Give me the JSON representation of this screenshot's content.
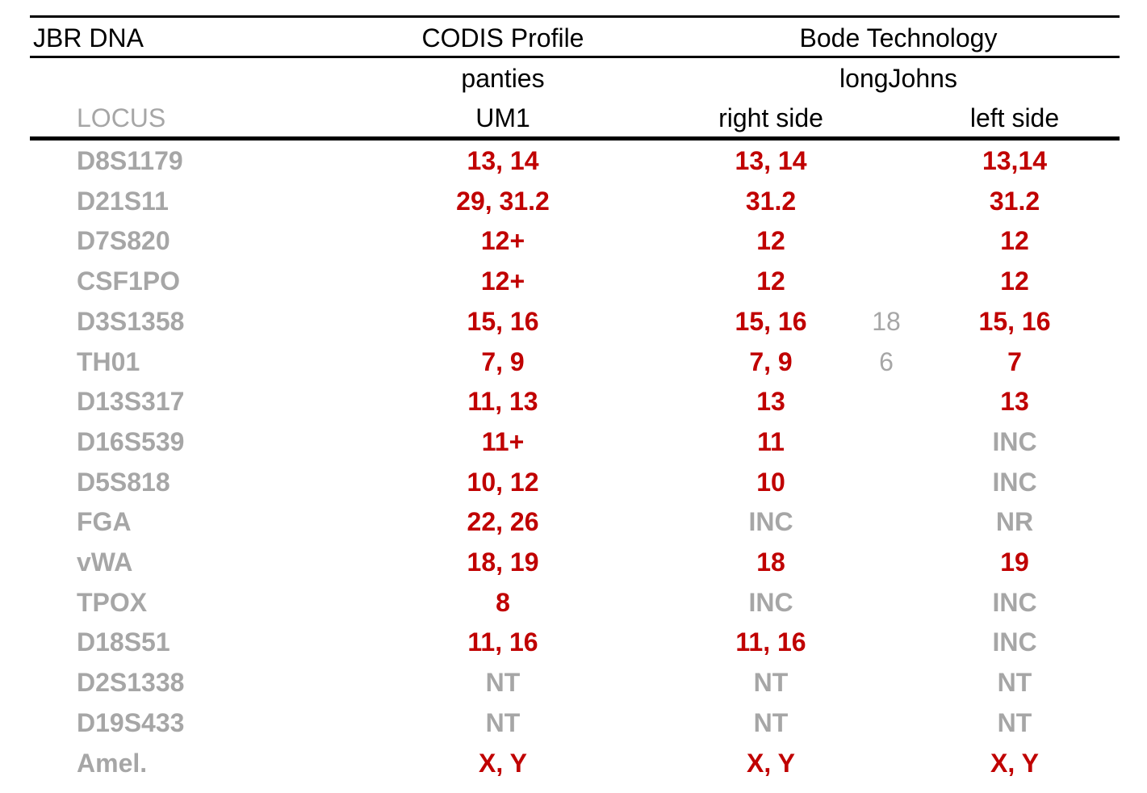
{
  "colors": {
    "allele": "#c00000",
    "muted": "#a6a6a6",
    "text": "#000000"
  },
  "header": {
    "title": "JBR DNA",
    "codis_profile": "CODIS Profile",
    "bode_technology": "Bode Technology",
    "panties": "panties",
    "longjohns": "longJohns",
    "locus": "LOCUS",
    "um1": "UM1",
    "right_side": "right side",
    "left_side": "left side"
  },
  "rows": [
    {
      "locus": "D8S1179",
      "um1": "13, 14",
      "right": "13, 14",
      "extra": "",
      "left": "13,14",
      "um1_tone": "red",
      "right_tone": "red",
      "left_tone": "red"
    },
    {
      "locus": "D21S11",
      "um1": "29, 31.2",
      "right": "31.2",
      "extra": "",
      "left": "31.2",
      "um1_tone": "red",
      "right_tone": "red",
      "left_tone": "red"
    },
    {
      "locus": "D7S820",
      "um1": "12+",
      "right": "12",
      "extra": "",
      "left": "12",
      "um1_tone": "red",
      "right_tone": "red",
      "left_tone": "red"
    },
    {
      "locus": "CSF1PO",
      "um1": "12+",
      "right": "12",
      "extra": "",
      "left": "12",
      "um1_tone": "red",
      "right_tone": "red",
      "left_tone": "red"
    },
    {
      "locus": "D3S1358",
      "um1": "15, 16",
      "right": "15, 16",
      "extra": "18",
      "left": "15, 16",
      "um1_tone": "red",
      "right_tone": "red",
      "left_tone": "red"
    },
    {
      "locus": "TH01",
      "um1": "7, 9",
      "right": "7, 9",
      "extra": "6",
      "left": "7",
      "um1_tone": "red",
      "right_tone": "red",
      "left_tone": "red"
    },
    {
      "locus": "D13S317",
      "um1": "11, 13",
      "right": "13",
      "extra": "",
      "left": "13",
      "um1_tone": "red",
      "right_tone": "red",
      "left_tone": "red"
    },
    {
      "locus": "D16S539",
      "um1": "11+",
      "right": "11",
      "extra": "",
      "left": "INC",
      "um1_tone": "red",
      "right_tone": "red",
      "left_tone": "gray"
    },
    {
      "locus": "D5S818",
      "um1": "10, 12",
      "right": "10",
      "extra": "",
      "left": "INC",
      "um1_tone": "red",
      "right_tone": "red",
      "left_tone": "gray"
    },
    {
      "locus": "FGA",
      "um1": "22, 26",
      "right": "INC",
      "extra": "",
      "left": "NR",
      "um1_tone": "red",
      "right_tone": "gray",
      "left_tone": "gray"
    },
    {
      "locus": "vWA",
      "um1": "18, 19",
      "right": "18",
      "extra": "",
      "left": "19",
      "um1_tone": "red",
      "right_tone": "red",
      "left_tone": "red"
    },
    {
      "locus": "TPOX",
      "um1": "8",
      "right": "INC",
      "extra": "",
      "left": "INC",
      "um1_tone": "red",
      "right_tone": "gray",
      "left_tone": "gray"
    },
    {
      "locus": "D18S51",
      "um1": "11, 16",
      "right": "11, 16",
      "extra": "",
      "left": "INC",
      "um1_tone": "red",
      "right_tone": "red",
      "left_tone": "gray"
    },
    {
      "locus": "D2S1338",
      "um1": "NT",
      "right": "NT",
      "extra": "",
      "left": "NT",
      "um1_tone": "gray",
      "right_tone": "gray",
      "left_tone": "gray"
    },
    {
      "locus": "D19S433",
      "um1": "NT",
      "right": "NT",
      "extra": "",
      "left": "NT",
      "um1_tone": "gray",
      "right_tone": "gray",
      "left_tone": "gray"
    },
    {
      "locus": "Amel.",
      "um1": "X, Y",
      "right": "X, Y",
      "extra": "",
      "left": "X, Y",
      "um1_tone": "red",
      "right_tone": "red",
      "left_tone": "red"
    }
  ]
}
